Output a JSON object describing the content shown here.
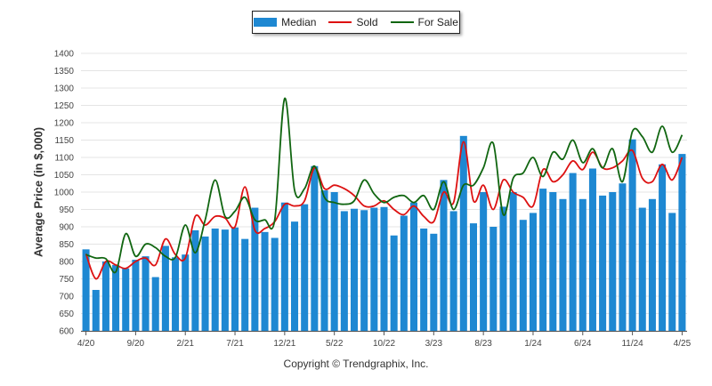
{
  "chart_data": {
    "type": "bar",
    "ylabel": "Average Price (in $,000)",
    "ylim": [
      600,
      1400
    ],
    "yticks": [
      600,
      650,
      700,
      750,
      800,
      850,
      900,
      950,
      1000,
      1050,
      1100,
      1150,
      1200,
      1250,
      1300,
      1350,
      1400
    ],
    "grid": true,
    "legend_position": "top-center",
    "x_tick_labels": [
      "4/20",
      "9/20",
      "2/21",
      "7/21",
      "12/21",
      "5/22",
      "10/22",
      "3/23",
      "8/23",
      "1/24",
      "6/24",
      "11/24",
      "4/25"
    ],
    "x_tick_every": 5,
    "categories": [
      "4/20",
      "5/20",
      "6/20",
      "7/20",
      "8/20",
      "9/20",
      "10/20",
      "11/20",
      "12/20",
      "1/21",
      "2/21",
      "3/21",
      "4/21",
      "5/21",
      "6/21",
      "7/21",
      "8/21",
      "9/21",
      "10/21",
      "11/21",
      "12/21",
      "1/22",
      "2/22",
      "3/22",
      "4/22",
      "5/22",
      "6/22",
      "7/22",
      "8/22",
      "9/22",
      "10/22",
      "11/22",
      "12/22",
      "1/23",
      "2/23",
      "3/23",
      "4/23",
      "5/23",
      "6/23",
      "7/23",
      "8/23",
      "9/23",
      "10/23",
      "11/23",
      "12/23",
      "1/24",
      "2/24",
      "3/24",
      "4/24",
      "5/24",
      "6/24",
      "7/24",
      "8/24",
      "9/24",
      "10/24",
      "11/24",
      "12/24",
      "1/25",
      "2/25",
      "3/25",
      "4/25"
    ],
    "series": [
      {
        "name": "Median",
        "kind": "bar",
        "color": "#1e88d2",
        "values": [
          835,
          718,
          800,
          790,
          780,
          805,
          815,
          755,
          845,
          812,
          820,
          890,
          872,
          895,
          892,
          898,
          865,
          955,
          885,
          868,
          970,
          915,
          965,
          1075,
          1005,
          1000,
          945,
          952,
          948,
          955,
          957,
          875,
          932,
          970,
          895,
          880,
          1035,
          945,
          1162,
          910,
          1000,
          900,
          958,
          1000,
          920,
          940,
          1010,
          1000,
          980,
          1055,
          980,
          1068,
          990,
          1000,
          1025,
          1152,
          955,
          980,
          1080,
          940,
          1110
        ]
      },
      {
        "name": "Sold",
        "kind": "line",
        "color": "#dd1111",
        "values": [
          822,
          750,
          800,
          790,
          780,
          800,
          810,
          790,
          865,
          820,
          810,
          930,
          905,
          930,
          925,
          900,
          1015,
          890,
          895,
          915,
          965,
          960,
          975,
          1070,
          1010,
          1020,
          1010,
          990,
          960,
          960,
          975,
          950,
          935,
          960,
          930,
          915,
          1000,
          970,
          1145,
          975,
          1020,
          950,
          1035,
          1000,
          985,
          960,
          1065,
          1030,
          1050,
          1090,
          1065,
          1115,
          1070,
          1070,
          1090,
          1120,
          1040,
          1030,
          1080,
          1035,
          1100
        ]
      },
      {
        "name": "For Sale",
        "kind": "line",
        "color": "#116611",
        "values": [
          820,
          810,
          808,
          770,
          880,
          815,
          850,
          840,
          815,
          812,
          905,
          825,
          920,
          1035,
          930,
          945,
          985,
          920,
          920,
          920,
          1270,
          1005,
          1010,
          1075,
          985,
          970,
          965,
          975,
          1035,
          995,
          970,
          985,
          990,
          970,
          990,
          950,
          1030,
          950,
          1020,
          1020,
          1070,
          1140,
          935,
          1040,
          1055,
          1100,
          1045,
          1115,
          1095,
          1150,
          1085,
          1125,
          1070,
          1125,
          1030,
          1175,
          1160,
          1115,
          1190,
          1115,
          1165
        ]
      }
    ]
  },
  "legend": {
    "items": [
      {
        "label": "Median",
        "color": "#1e88d2"
      },
      {
        "label": "Sold",
        "color": "#dd1111"
      },
      {
        "label": "For Sale",
        "color": "#116611"
      }
    ]
  },
  "footer": {
    "copyright": "Copyright © Trendgraphix, Inc."
  }
}
